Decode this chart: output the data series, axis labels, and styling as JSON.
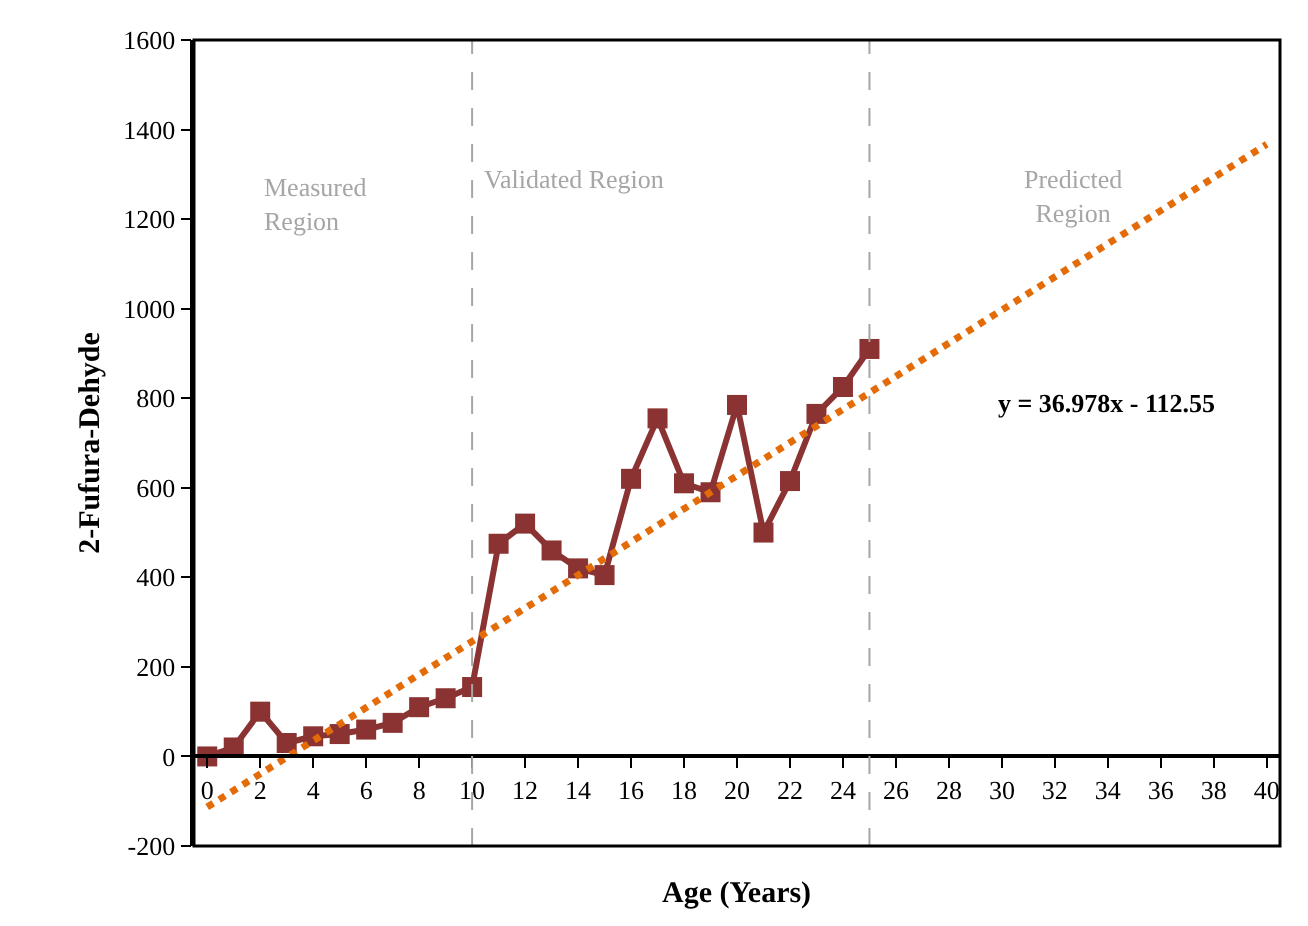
{
  "chart_data": {
    "type": "line",
    "xlabel": "Age (Years)",
    "ylabel": "2-Fufura-Dehyde",
    "x": [
      0,
      1,
      2,
      3,
      4,
      5,
      6,
      7,
      8,
      9,
      10,
      11,
      12,
      13,
      14,
      15,
      16,
      17,
      18,
      19,
      20,
      21,
      22,
      23,
      24,
      25
    ],
    "series": [
      {
        "color": "#8b3333",
        "values": [
          0,
          20,
          100,
          30,
          45,
          50,
          60,
          75,
          110,
          130,
          155,
          475,
          520,
          460,
          420,
          405,
          620,
          755,
          610,
          590,
          785,
          500,
          615,
          765,
          825,
          910
        ],
        "marker": "square",
        "line_style": "solid"
      },
      {
        "type": "line",
        "color": "#e36c09",
        "x": [
          0,
          40
        ],
        "values": [
          -113,
          1367
        ],
        "marker": "none",
        "line_style": "dotted"
      }
    ],
    "xlim": [
      -0.5,
      40.5
    ],
    "xticks": [
      0,
      2,
      4,
      6,
      8,
      10,
      12,
      14,
      16,
      18,
      20,
      22,
      24,
      26,
      28,
      30,
      32,
      34,
      36,
      38,
      40
    ],
    "ylim": [
      -200,
      1600
    ],
    "yticks": [
      -200,
      0,
      200,
      400,
      600,
      800,
      1000,
      1200,
      1400,
      1600
    ],
    "ref_lines": [
      {
        "axis": "x",
        "value": 10,
        "color": "#a6a6a6",
        "line_style": "dashed"
      },
      {
        "axis": "x",
        "value": 25,
        "color": "#a6a6a6",
        "line_style": "dashed"
      }
    ],
    "annotations": [
      "Measured\nRegion",
      "Validated Region",
      "Predicted\nRegion",
      "y = 36.978x - 112.55"
    ]
  }
}
